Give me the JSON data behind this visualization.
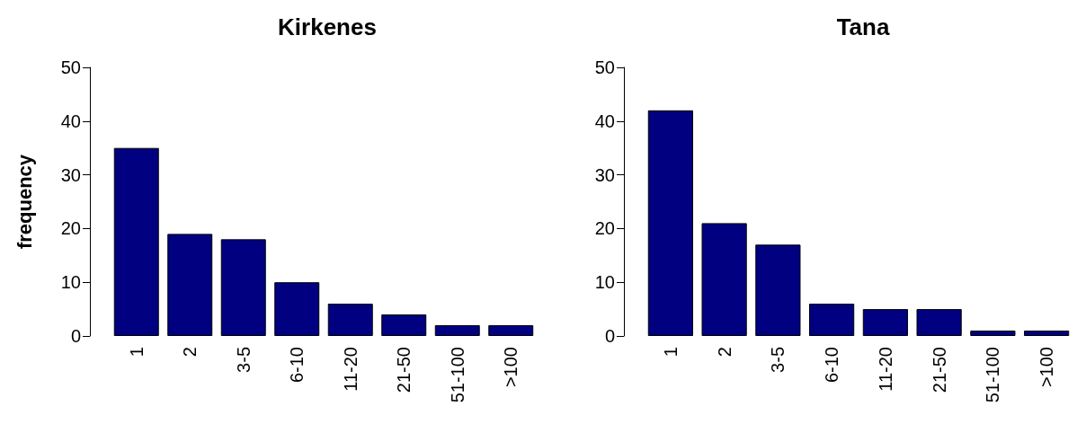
{
  "chart_data": [
    {
      "type": "bar",
      "title": "Kirkenes",
      "ylabel": "frequency",
      "categories": [
        "1",
        "2",
        "3-5",
        "6-10",
        "11-20",
        "21-50",
        "51-100",
        ">100"
      ],
      "values": [
        35,
        19,
        18,
        10,
        6,
        4,
        2,
        2
      ],
      "color": "#000080",
      "ylim": [
        0,
        50
      ],
      "yticks": [
        0,
        10,
        20,
        30,
        40,
        50
      ]
    },
    {
      "type": "bar",
      "title": "Tana",
      "categories": [
        "1",
        "2",
        "3-5",
        "6-10",
        "11-20",
        "21-50",
        "51-100",
        ">100"
      ],
      "values": [
        42,
        21,
        17,
        6,
        5,
        5,
        1,
        1
      ],
      "color": "#000080",
      "ylim": [
        0,
        50
      ],
      "yticks": [
        0,
        10,
        20,
        30,
        40,
        50
      ]
    }
  ]
}
